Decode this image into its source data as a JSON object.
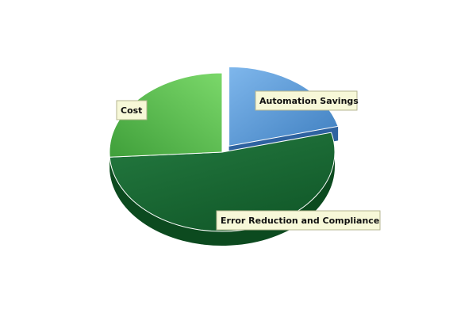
{
  "chart_data": {
    "type": "pie",
    "style": "3d-exploded",
    "slices": [
      {
        "label": "Automation Savings",
        "value": 21,
        "color": "#5f9fdb",
        "exploded": true
      },
      {
        "label": "Error Reduction and Compliance",
        "value": 53,
        "color": "#1c6b38",
        "exploded": false
      },
      {
        "label": "Cost",
        "value": 26,
        "color": "#5cc04f",
        "exploded": false
      }
    ],
    "callout_bg": "#f7f8d8",
    "callout_border": "#b6b691"
  }
}
